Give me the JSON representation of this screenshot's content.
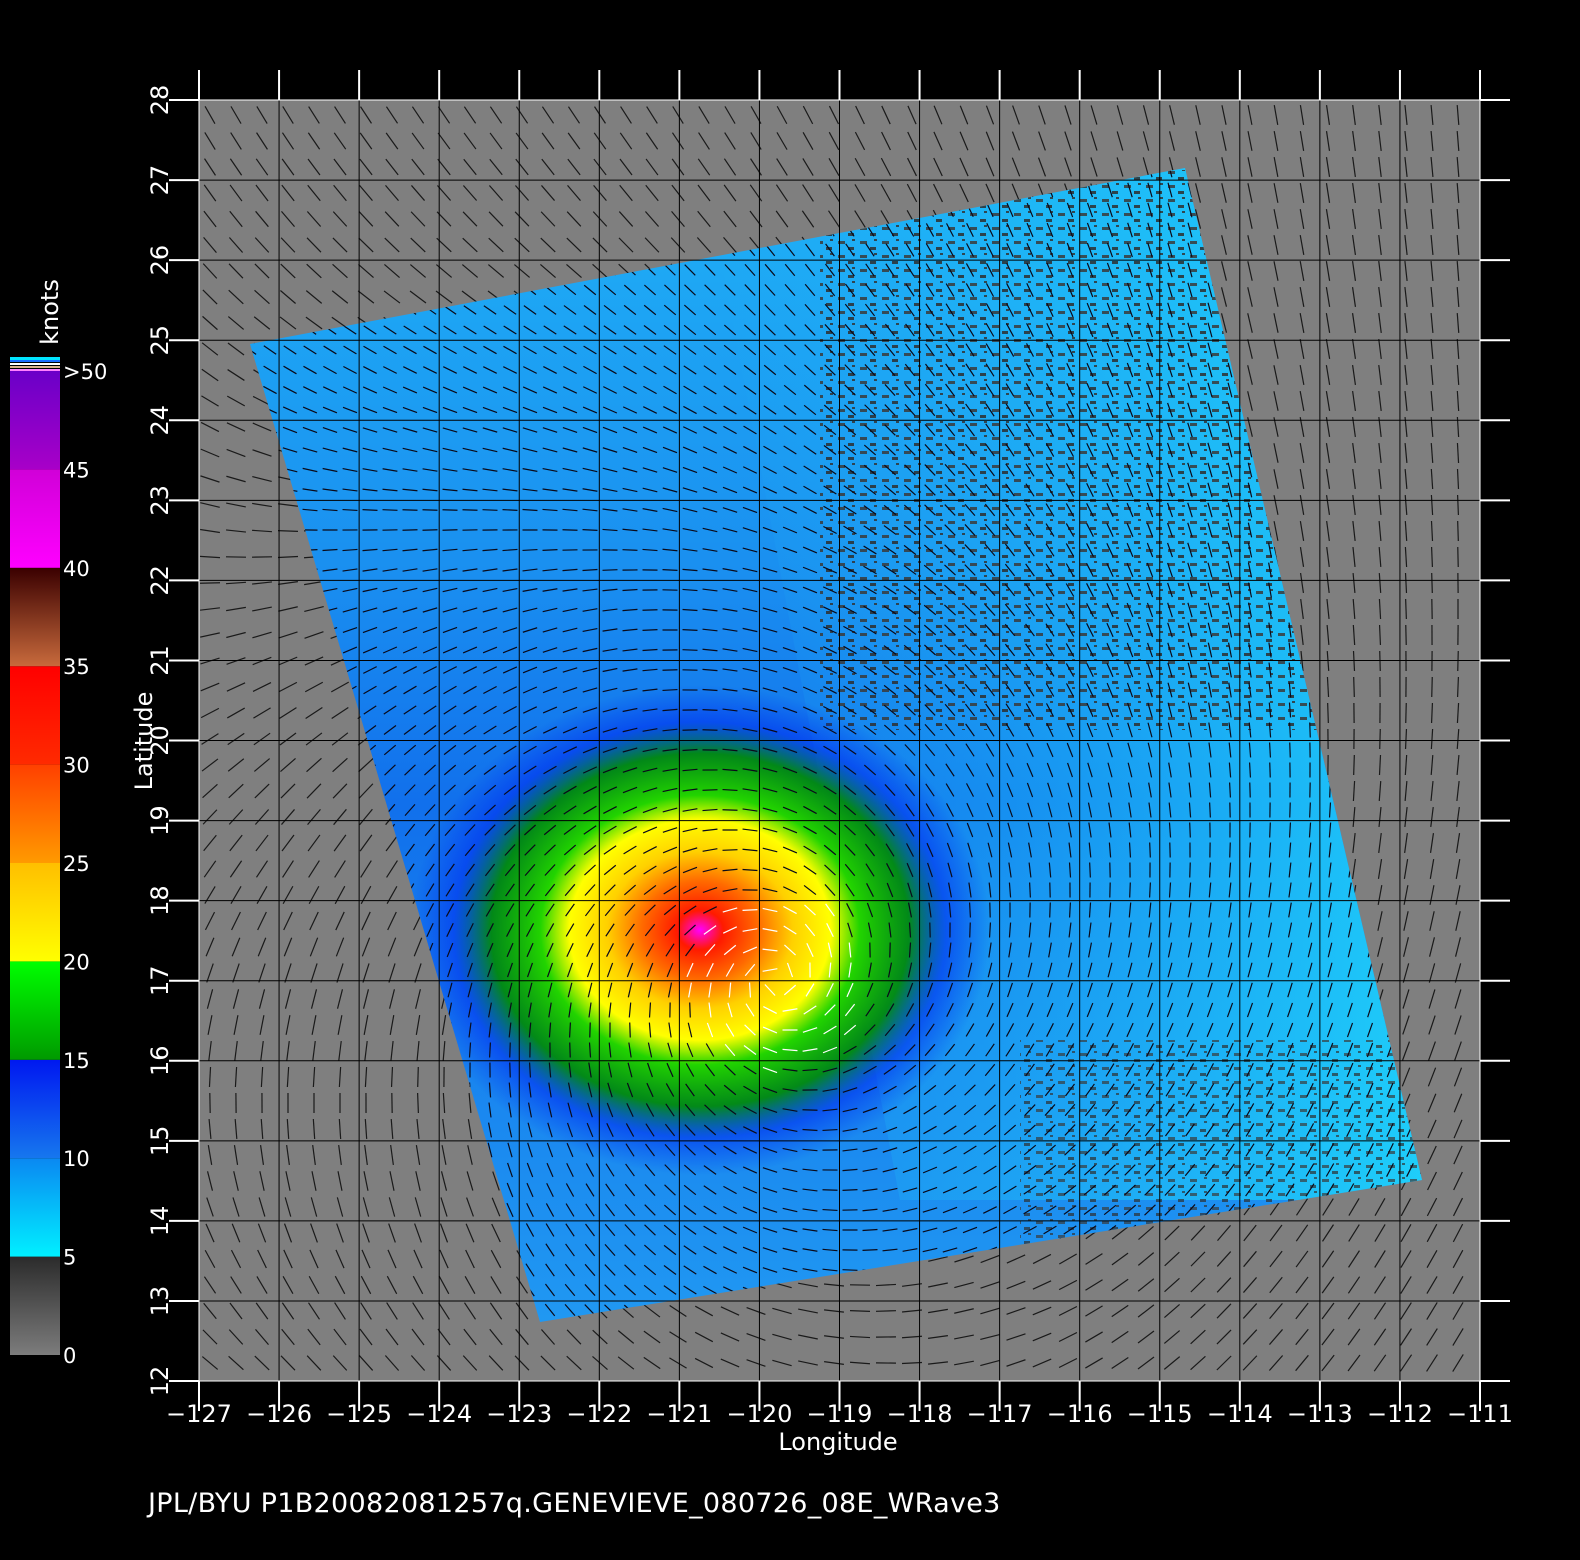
{
  "map": {
    "lon_range": [
      -127,
      -111
    ],
    "lat_range": [
      12,
      28
    ],
    "lon_ticks": [
      "−127",
      "−126",
      "−125",
      "−124",
      "−123",
      "−122",
      "−121",
      "−120",
      "−119",
      "−118",
      "−117",
      "−116",
      "−115",
      "−114",
      "−113",
      "−112",
      "−111"
    ],
    "lat_ticks": [
      "12",
      "13",
      "14",
      "15",
      "16",
      "17",
      "18",
      "19",
      "20",
      "21",
      "22",
      "23",
      "24",
      "25",
      "26",
      "27",
      "28"
    ],
    "xlabel": "Longitude",
    "ylabel": "Latitude",
    "grid": true,
    "storm_center": {
      "lon": -119.8,
      "lat": 17.0
    },
    "background_color": "#7f7f7f"
  },
  "colorbar": {
    "unit_label": "knots",
    "labels": [
      "0",
      "5",
      "10",
      "15",
      "20",
      "25",
      "30",
      "35",
      "40",
      "45",
      ">50"
    ],
    "bands": [
      {
        "min": 0,
        "max": 5,
        "from": "#7c7c7c",
        "to": "#2b2b2b"
      },
      {
        "min": 5,
        "max": 10,
        "from": "#00f0ff",
        "to": "#0a88f2"
      },
      {
        "min": 10,
        "max": 15,
        "from": "#1677ee",
        "to": "#0018f0"
      },
      {
        "min": 15,
        "max": 20,
        "from": "#009a00",
        "to": "#00ff00"
      },
      {
        "min": 20,
        "max": 25,
        "from": "#ffff00",
        "to": "#ffbf00"
      },
      {
        "min": 25,
        "max": 30,
        "from": "#ff9a00",
        "to": "#ff4000"
      },
      {
        "min": 30,
        "max": 35,
        "from": "#ff2a00",
        "to": "#ff0000"
      },
      {
        "min": 35,
        "max": 40,
        "from": "#c86a3c",
        "to": "#3a0000"
      },
      {
        "min": 40,
        "max": 45,
        "from": "#ff00ff",
        "to": "#d000d8"
      },
      {
        "min": 45,
        "max": 50,
        "from": "#a800c8",
        "to": "#6a00c8"
      }
    ]
  },
  "footer": {
    "text": "JPL/BYU   P1B20082081257q.GENEVIEVE_080726_08E_WRave3"
  }
}
